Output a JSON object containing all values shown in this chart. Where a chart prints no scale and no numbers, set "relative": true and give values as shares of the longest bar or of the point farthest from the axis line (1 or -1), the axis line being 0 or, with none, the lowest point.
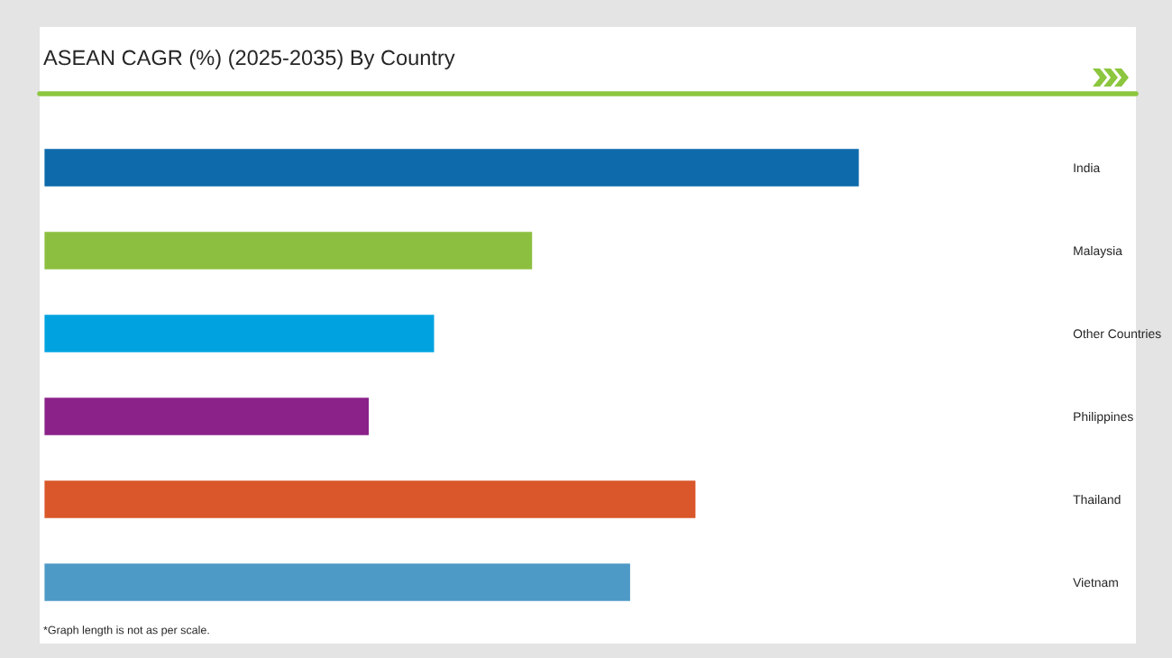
{
  "chart_data": {
    "type": "bar",
    "orientation": "horizontal",
    "relative": true,
    "title": "ASEAN CAGR (%) (2025-2035) By Country",
    "categories": [
      "India",
      "Malaysia",
      "Other Countries",
      "Philippines",
      "Thailand",
      "Vietnam"
    ],
    "values": [
      1,
      0.6,
      0.48,
      0.4,
      0.8,
      0.72
    ],
    "colors": [
      "#0e6aaa",
      "#8cbf3f",
      "#00a3e0",
      "#8b2289",
      "#d9572a",
      "#4e9ac6"
    ],
    "annotations": [
      "*Graph length is not as per scale."
    ]
  }
}
